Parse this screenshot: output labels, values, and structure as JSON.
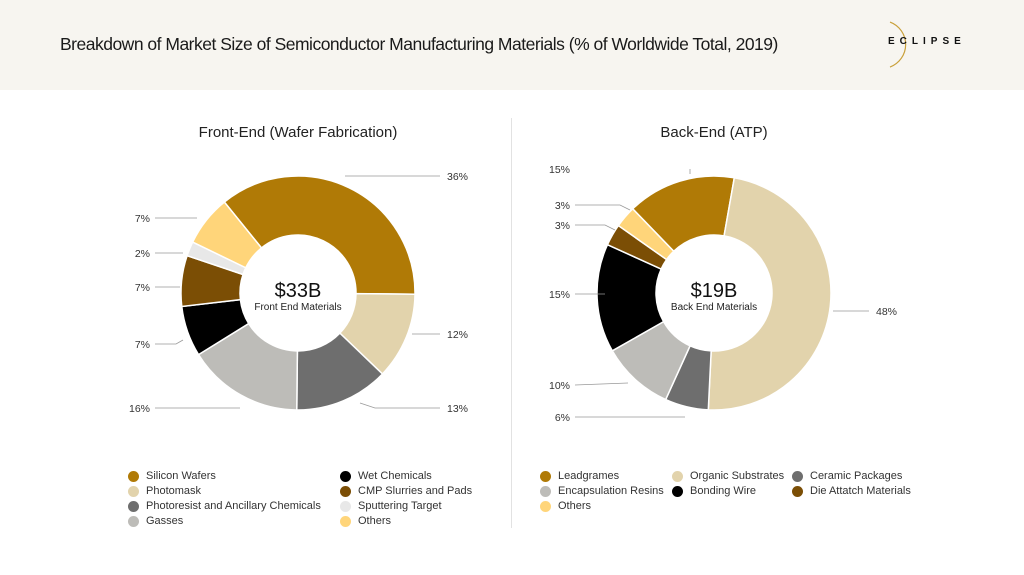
{
  "header": {
    "title": "Breakdown of Market Size of Semiconductor Manufacturing Materials (% of Worldwide Total, 2019)",
    "logo": "ECLIPSE"
  },
  "chart_data": [
    {
      "type": "pie",
      "title": "Front-End (Wafer Fabrication)",
      "center_value": "$33B",
      "center_label": "Front End Materials",
      "categories": [
        "Silicon Wafers",
        "Photomask",
        "Photoresist and Ancillary Chemicals",
        "Gasses",
        "Wet Chemicals",
        "CMP Slurries and Pads",
        "Sputtering Target",
        "Others"
      ],
      "values": [
        36,
        12,
        13,
        16,
        7,
        7,
        2,
        7
      ],
      "labels": [
        "36%",
        "12%",
        "13%",
        "16%",
        "7%",
        "7%",
        "2%",
        "7%"
      ],
      "colors": [
        "#B07A06",
        "#E2D3AC",
        "#6E6E6E",
        "#BDBCB8",
        "#000000",
        "#7B4E05",
        "#E8E8E8",
        "#FFD57A"
      ],
      "legend_order": [
        0,
        1,
        2,
        3,
        4,
        5,
        6,
        7
      ]
    },
    {
      "type": "pie",
      "title": "Back-End (ATP)",
      "center_value": "$19B",
      "center_label": "Back End Materials",
      "categories": [
        "Leadgrames",
        "Organic Substrates",
        "Ceramic Packages",
        "Encapsulation Resins",
        "Bonding Wire",
        "Die Attatch Materials",
        "Others"
      ],
      "values": [
        15,
        48,
        6,
        10,
        15,
        3,
        3
      ],
      "labels": [
        "15%",
        "48%",
        "6%",
        "10%",
        "15%",
        "3%",
        "3%"
      ],
      "colors": [
        "#B07A06",
        "#E2D3AC",
        "#6E6E6E",
        "#BDBCB8",
        "#000000",
        "#7B4E05",
        "#FFD57A"
      ],
      "legend_order": [
        0,
        1,
        2,
        3,
        4,
        5,
        6
      ]
    }
  ]
}
